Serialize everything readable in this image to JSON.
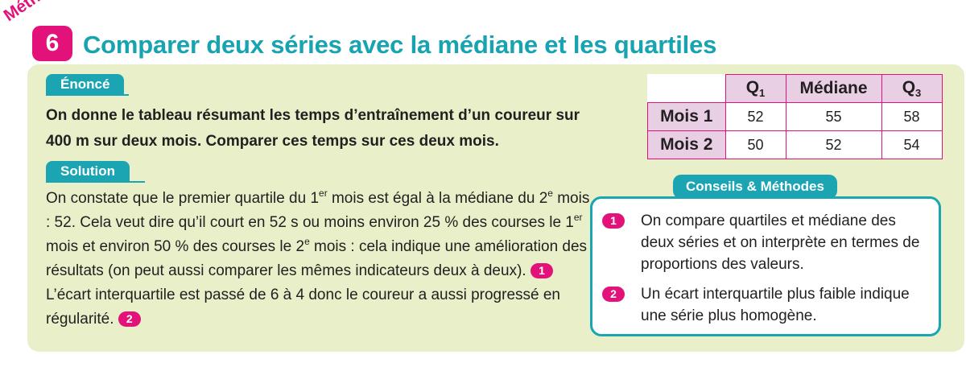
{
  "header": {
    "methode_label": "Méthode",
    "methode_number": "6",
    "title": "Comparer deux séries avec la médiane et les quartiles"
  },
  "enonce": {
    "tab_label": "Énoncé",
    "text": "On donne le tableau résumant les temps d’entraînement d’un coureur sur 400 m sur deux mois. Comparer ces temps sur ces deux mois."
  },
  "solution": {
    "tab_label": "Solution",
    "p1": "On constate que le premier quartile du 1",
    "sup1": "er",
    "p2": " mois est égal à la médiane du 2",
    "sup2": "e",
    "p3": " mois : 52. Cela veut dire qu’il court en 52 s ou moins environ 25 % des courses le 1",
    "sup3": "er",
    "p4": " mois et environ 50 % des courses le 2",
    "sup4": "e",
    "p5": " mois : cela indique une amélioration des résultats (on peut aussi comparer les mêmes indicateurs deux à deux).",
    "ref1": "1",
    "p6": " L’écart interquartile est passé de 6 à 4 donc le coureur a aussi progressé en régularité.",
    "ref2": "2"
  },
  "table": {
    "col_q1": "Q",
    "col_q1_sub": "1",
    "col_median": "Médiane",
    "col_q3": "Q",
    "col_q3_sub": "3",
    "rows": [
      {
        "label": "Mois 1",
        "q1": "52",
        "median": "55",
        "q3": "58"
      },
      {
        "label": "Mois 2",
        "q1": "50",
        "median": "52",
        "q3": "54"
      }
    ]
  },
  "conseils": {
    "title": "Conseils & Méthodes",
    "items": [
      {
        "num": "1",
        "text": "On compare quartiles et médiane des deux séries et on interprète en termes de proportions des valeurs."
      },
      {
        "num": "2",
        "text": "Un écart interquartile plus faible indique une série plus homogène."
      }
    ]
  },
  "colors": {
    "accent_pink": "#e2127a",
    "accent_teal": "#1ba4b2",
    "panel_green": "#e8efc9",
    "header_cell": "#e8cfe4"
  }
}
